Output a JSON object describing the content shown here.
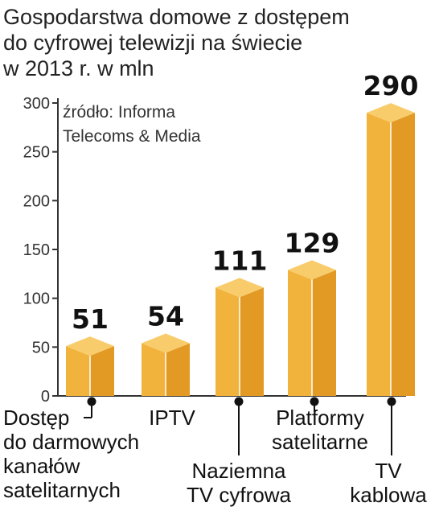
{
  "title_lines": [
    "Gospodarstwa domowe z dostępem",
    "do cyfrowej telewizji na świecie",
    "w 2013 r. w mln"
  ],
  "source_lines": [
    "źródło: Informa",
    "Telecoms & Media"
  ],
  "chart_data": {
    "type": "bar",
    "categories": [
      "Dostęp do darmowych kanałów satelitarnych",
      "IPTV",
      "Naziemna TV cyfrowa",
      "Platformy satelitarne",
      "TV kablowa"
    ],
    "category_label_lines": [
      [
        "Dostęp",
        "do darmowych",
        "kanałów",
        "satelitarnych"
      ],
      [
        "IPTV"
      ],
      [
        "Naziemna",
        "TV cyfrowa"
      ],
      [
        "Platformy",
        "satelitarne"
      ],
      [
        "TV",
        "kablowa"
      ]
    ],
    "values": [
      51,
      54,
      111,
      129,
      290
    ],
    "value_labels": [
      "51",
      "54",
      "111",
      "129",
      "290"
    ],
    "yticks": [
      "0",
      "50",
      "100",
      "150",
      "200",
      "250",
      "300"
    ],
    "ylim": [
      0,
      300
    ],
    "bar_colors": {
      "front": "#F2B33D",
      "side": "#E39A24",
      "top": "#F8CC6B"
    },
    "grid": false,
    "legend": "none"
  }
}
